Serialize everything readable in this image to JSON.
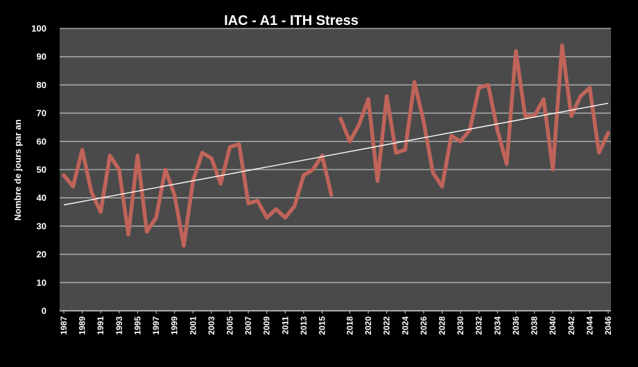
{
  "chart_data": {
    "type": "line",
    "title": "IAC - A1 - ITH Stress",
    "ylabel": "Nombre de jours par an",
    "xlabel": "",
    "ylim": [
      0,
      100
    ],
    "yticks": [
      0,
      10,
      20,
      30,
      40,
      50,
      60,
      70,
      80,
      90,
      100
    ],
    "grid": true,
    "legend": "none",
    "colors": {
      "background": "#000000",
      "plot_area": "#4a4a4a",
      "grid": "#a8a8a8",
      "series": "#c0645a",
      "trend": "#ffffff",
      "text": "#ffffff"
    },
    "x_tick_labels": [
      "1987",
      "1989",
      "1991",
      "1993",
      "1995",
      "1997",
      "1999",
      "2001",
      "2003",
      "2005",
      "2007",
      "2009",
      "2011",
      "2013",
      "2015",
      "2018",
      "2020",
      "2022",
      "2024",
      "2026",
      "2028",
      "2030",
      "2032",
      "2034",
      "2036",
      "2038",
      "2040",
      "2042",
      "2044",
      "2046"
    ],
    "series": [
      {
        "values": [
          [
            1987,
            48
          ],
          [
            1988,
            44
          ],
          [
            1989,
            57
          ],
          [
            1990,
            42
          ],
          [
            1991,
            35
          ],
          [
            1992,
            55
          ],
          [
            1993,
            50
          ],
          [
            1994,
            27
          ],
          [
            1995,
            55
          ],
          [
            1996,
            28
          ],
          [
            1997,
            33
          ],
          [
            1998,
            50
          ],
          [
            1999,
            41
          ],
          [
            2000,
            23
          ],
          [
            2001,
            46
          ],
          [
            2002,
            56
          ],
          [
            2003,
            54
          ],
          [
            2004,
            45
          ],
          [
            2005,
            58
          ],
          [
            2006,
            59
          ],
          [
            2007,
            38
          ],
          [
            2008,
            39
          ],
          [
            2009,
            33
          ],
          [
            2010,
            36
          ],
          [
            2011,
            33
          ],
          [
            2012,
            37
          ],
          [
            2013,
            48
          ],
          [
            2014,
            50
          ],
          [
            2015,
            55
          ],
          [
            2016,
            41
          ]
        ]
      },
      {
        "values": [
          [
            2017,
            68
          ],
          [
            2018,
            60
          ],
          [
            2019,
            66
          ],
          [
            2020,
            75
          ],
          [
            2021,
            46
          ],
          [
            2022,
            76
          ],
          [
            2023,
            56
          ],
          [
            2024,
            57
          ],
          [
            2025,
            81
          ],
          [
            2026,
            67
          ],
          [
            2027,
            49
          ],
          [
            2028,
            44
          ],
          [
            2029,
            62
          ],
          [
            2030,
            60
          ],
          [
            2031,
            64
          ],
          [
            2032,
            79
          ],
          [
            2033,
            80
          ],
          [
            2034,
            64
          ],
          [
            2035,
            52
          ],
          [
            2036,
            92
          ],
          [
            2037,
            69
          ],
          [
            2038,
            69
          ],
          [
            2039,
            75
          ],
          [
            2040,
            50
          ],
          [
            2041,
            94
          ],
          [
            2042,
            69
          ],
          [
            2043,
            76
          ],
          [
            2044,
            79
          ],
          [
            2045,
            56
          ],
          [
            2046,
            63
          ]
        ]
      }
    ],
    "trendline": {
      "start": [
        1987,
        37.5
      ],
      "end": [
        2046,
        73.5
      ]
    }
  }
}
